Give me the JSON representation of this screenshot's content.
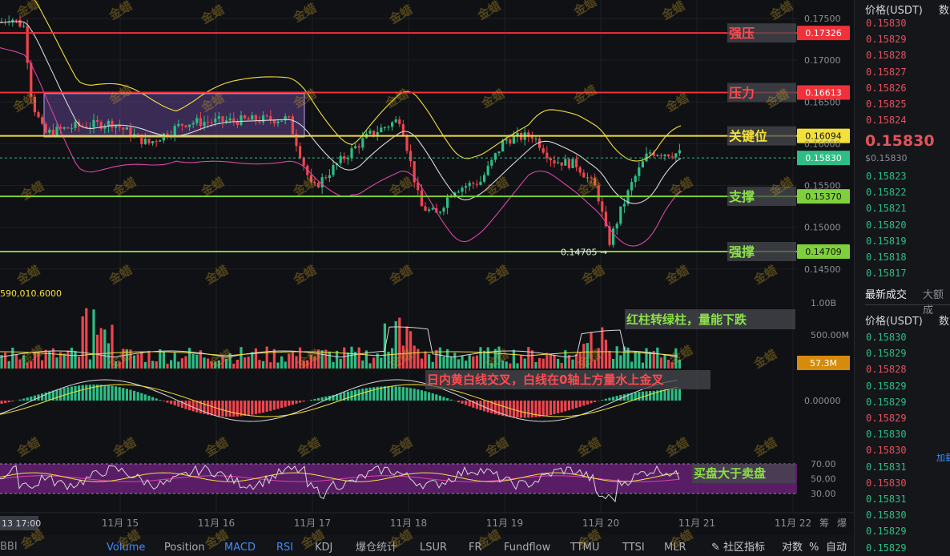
{
  "orderbook": {
    "header_price": "价格(USDT)",
    "header_qty": "数",
    "asks": [
      "0.15830",
      "0.15829",
      "0.15828",
      "0.15827",
      "0.15826",
      "0.15825",
      "0.15824"
    ],
    "last_price": "0.15830",
    "last_price_usd": "$0.15830",
    "bids": [
      "0.15823",
      "0.15822",
      "0.15821",
      "0.15820",
      "0.15819",
      "0.15818",
      "0.15817"
    ],
    "tab_latest": "最新成交",
    "tab_large": "大额成",
    "trades_header_price": "价格(USDT)",
    "trades_header_qty": "数",
    "trades": [
      {
        "price": "0.15830",
        "side": "buy"
      },
      {
        "price": "0.15829",
        "side": "buy"
      },
      {
        "price": "0.15828",
        "side": "sell"
      },
      {
        "price": "0.15829",
        "side": "buy"
      },
      {
        "price": "0.15829",
        "side": "buy"
      },
      {
        "price": "0.15829",
        "side": "sell"
      },
      {
        "price": "0.15830",
        "side": "buy"
      },
      {
        "price": "0.15830",
        "side": "sell"
      },
      {
        "price": "0.15831",
        "side": "buy"
      },
      {
        "price": "0.15830",
        "side": "sell"
      },
      {
        "price": "0.15831",
        "side": "buy"
      },
      {
        "price": "0.15830",
        "side": "buy"
      },
      {
        "price": "0.15829",
        "side": "buy"
      },
      {
        "price": "0.15829",
        "side": "buy"
      }
    ],
    "load_more": "加载"
  },
  "price_axis": [
    "0.17500",
    "0.17000",
    "0.16500",
    "0.16000",
    "0.15500",
    "0.15000",
    "0.14500"
  ],
  "levels": [
    {
      "name": "强压",
      "price": 0.17326,
      "label": "0.17326",
      "color": "#f0313a",
      "text_color": "#ff4a50",
      "tag_text": "#ffffff"
    },
    {
      "name": "压力",
      "price": 0.16613,
      "label": "0.16613",
      "color": "#f0313a",
      "text_color": "#ff4a50",
      "tag_text": "#ffffff"
    },
    {
      "name": "关键位",
      "price": 0.16094,
      "label": "0.16094",
      "color": "#f3e03b",
      "text_color": "#f3e03b",
      "tag_text": "#111111"
    },
    {
      "name": "支撑",
      "price": 0.1537,
      "label": "0.15370",
      "color": "#7fd13b",
      "text_color": "#8be04a",
      "tag_text": "#111111"
    },
    {
      "name": "强撑",
      "price": 0.14709,
      "label": "0.14709",
      "color": "#7fd13b",
      "text_color": "#8be04a",
      "tag_text": "#111111"
    }
  ],
  "current_price": {
    "value": 0.1583,
    "label": "0.15830",
    "color": "#2ebd85"
  },
  "low_marker": "0.14705",
  "volume_axis": [
    "1.00B",
    "500.00M"
  ],
  "volume_tag": {
    "label": "57.3M",
    "color": "#d58b0c"
  },
  "macd_axis": [
    "0.00000"
  ],
  "rsi_axis": [
    "70.00",
    "50.00",
    "30.00"
  ],
  "annotations": {
    "volume_note": "红柱转绿柱，量能下跌",
    "macd_note": "日内黄白线交叉，白线在0轴上方量水上金叉",
    "rsi_note": "买盘大于卖盘"
  },
  "top_left_value": "590,010.6000",
  "time_axis": [
    "11月 15",
    "11月 16",
    "11月 17",
    "11月 18",
    "11月 19",
    "11月 20",
    "11月 21",
    "11月 22"
  ],
  "time_cursor": "13 17:00",
  "toolbar": {
    "left_item": "BBI",
    "items": [
      "Volume",
      "Position",
      "MACD",
      "RSI",
      "KDJ",
      "爆仓统计",
      "LSUR",
      "FR",
      "Fundflow",
      "TTMU",
      "TTSI",
      "MLR"
    ],
    "active": [
      "Volume",
      "MACD",
      "RSI"
    ],
    "community": "社区指标",
    "right_items": [
      "对数",
      "%",
      "自动"
    ]
  },
  "watermark": "金蜡",
  "time_right_chars": [
    "筹",
    "爆"
  ],
  "colors": {
    "up": "#2ebd85",
    "down": "#f0444e",
    "bg": "#101114",
    "yellow": "#f3e03b",
    "white_line": "#d8d8d8",
    "pink": "#d946a8"
  }
}
